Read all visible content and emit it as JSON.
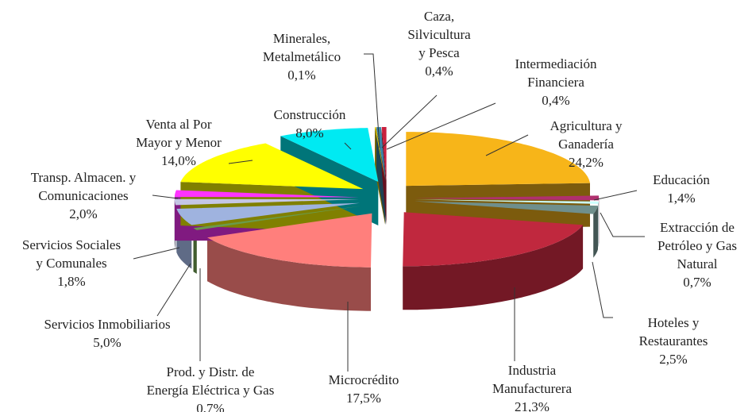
{
  "chart_data": {
    "type": "pie3d",
    "categories": [
      [
        "Agricultura y",
        "Ganadería"
      ],
      [
        "Educación"
      ],
      [
        "Extracción de",
        "Petróleo y Gas",
        "Natural"
      ],
      [
        "Hoteles y",
        "Restaurantes"
      ],
      [
        "Industria",
        "Manufacturera"
      ],
      [
        "Microcrédito"
      ],
      [
        "Prod. y Distr. de",
        "Energía Eléctrica y Gas"
      ],
      [
        "Servicios Inmobiliarios"
      ],
      [
        "Servicios Sociales",
        "y Comunales"
      ],
      [
        "Transp. Almacen. y",
        "Comunicaciones"
      ],
      [
        "Venta al Por",
        "Mayor y Menor"
      ],
      [
        "Construcción"
      ],
      [
        "Minerales,",
        "Metalmetálico"
      ],
      [
        "Caza,",
        "Silvicultura",
        "y Pesca"
      ],
      [
        "Intermediación",
        "Financiera"
      ]
    ],
    "values": [
      24.2,
      1.4,
      0.7,
      2.5,
      21.3,
      17.5,
      0.7,
      5.0,
      1.8,
      2.0,
      14.0,
      8.0,
      0.1,
      0.4,
      0.4
    ],
    "value_labels": [
      "24,2%",
      "1,4%",
      "0,7%",
      "2,5%",
      "21,3%",
      "17,5%",
      "0,7%",
      "5,0%",
      "1,8%",
      "2,0%",
      "14,0%",
      "8,0%",
      "0,1%",
      "0,4%",
      "0,4%"
    ],
    "colors": [
      "#f7b519",
      "#b0306e",
      "#ccffff",
      "#6f8f8c",
      "#c0283e",
      "#ff7f7c",
      "#6a9a4c",
      "#9fb3df",
      "#c4c6e4",
      "#ff33ff",
      "#ffff00",
      "#00eaf2",
      "#e6c800",
      "#3a86a8",
      "#c8203e"
    ]
  }
}
